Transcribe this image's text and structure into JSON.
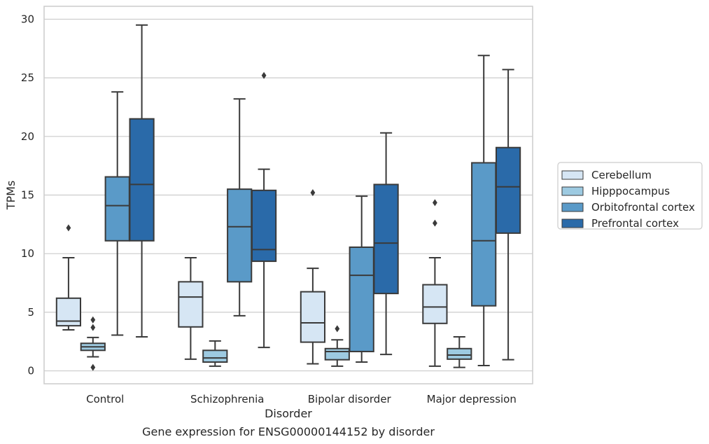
{
  "chart_data": {
    "type": "box",
    "title": "",
    "caption": "Gene expression for ENSG00000144152 by disorder",
    "xlabel": "Disorder",
    "ylabel": "TPMs",
    "ylim": [
      -1.1,
      31.1
    ],
    "yticks": [
      0,
      5,
      10,
      15,
      20,
      25,
      30
    ],
    "grid": "horizontal",
    "legend_position": "right",
    "categories": [
      "Control",
      "Schizophrenia",
      "Bipolar disorder",
      "Major depression"
    ],
    "series": [
      {
        "name": "Cerebellum",
        "color": "#d6e6f4",
        "boxes": [
          {
            "whisker_low": 3.5,
            "q1": 3.85,
            "median": 4.25,
            "q3": 6.2,
            "whisker_high": 9.65,
            "outliers": [
              12.2
            ]
          },
          {
            "whisker_low": 1.0,
            "q1": 3.75,
            "median": 6.3,
            "q3": 7.6,
            "whisker_high": 9.65,
            "outliers": []
          },
          {
            "whisker_low": 0.6,
            "q1": 2.45,
            "median": 4.1,
            "q3": 6.75,
            "whisker_high": 8.75,
            "outliers": [
              15.2
            ]
          },
          {
            "whisker_low": 0.4,
            "q1": 4.05,
            "median": 5.45,
            "q3": 7.35,
            "whisker_high": 9.65,
            "outliers": [
              12.6,
              14.35
            ]
          }
        ]
      },
      {
        "name": "Hipppocampus",
        "color": "#9dcae1",
        "boxes": [
          {
            "whisker_low": 1.2,
            "q1": 1.75,
            "median": 2.05,
            "q3": 2.35,
            "whisker_high": 2.85,
            "outliers": [
              0.3,
              3.7,
              4.35
            ]
          },
          {
            "whisker_low": 0.4,
            "q1": 0.75,
            "median": 1.1,
            "q3": 1.75,
            "whisker_high": 2.55,
            "outliers": []
          },
          {
            "whisker_low": 0.4,
            "q1": 0.95,
            "median": 1.65,
            "q3": 1.9,
            "whisker_high": 2.65,
            "outliers": [
              3.6
            ]
          },
          {
            "whisker_low": 0.3,
            "q1": 1.0,
            "median": 1.35,
            "q3": 1.9,
            "whisker_high": 2.9,
            "outliers": []
          }
        ]
      },
      {
        "name": "Orbitofrontal cortex",
        "color": "#5a9ac8",
        "boxes": [
          {
            "whisker_low": 3.05,
            "q1": 11.1,
            "median": 14.1,
            "q3": 16.55,
            "whisker_high": 23.8,
            "outliers": []
          },
          {
            "whisker_low": 4.7,
            "q1": 7.6,
            "median": 12.3,
            "q3": 15.5,
            "whisker_high": 23.2,
            "outliers": []
          },
          {
            "whisker_low": 0.75,
            "q1": 1.65,
            "median": 8.15,
            "q3": 10.55,
            "whisker_high": 14.9,
            "outliers": []
          },
          {
            "whisker_low": 0.45,
            "q1": 5.55,
            "median": 11.1,
            "q3": 17.75,
            "whisker_high": 26.9,
            "outliers": []
          }
        ]
      },
      {
        "name": "Prefrontal cortex",
        "color": "#2a6aa9",
        "boxes": [
          {
            "whisker_low": 2.9,
            "q1": 11.1,
            "median": 15.9,
            "q3": 21.5,
            "whisker_high": 29.5,
            "outliers": []
          },
          {
            "whisker_low": 2.0,
            "q1": 9.35,
            "median": 10.35,
            "q3": 15.4,
            "whisker_high": 17.2,
            "outliers": [
              25.2
            ]
          },
          {
            "whisker_low": 1.4,
            "q1": 6.6,
            "median": 10.9,
            "q3": 15.9,
            "whisker_high": 20.3,
            "outliers": []
          },
          {
            "whisker_low": 0.95,
            "q1": 11.75,
            "median": 15.7,
            "q3": 19.05,
            "whisker_high": 25.7,
            "outliers": []
          }
        ]
      }
    ]
  }
}
